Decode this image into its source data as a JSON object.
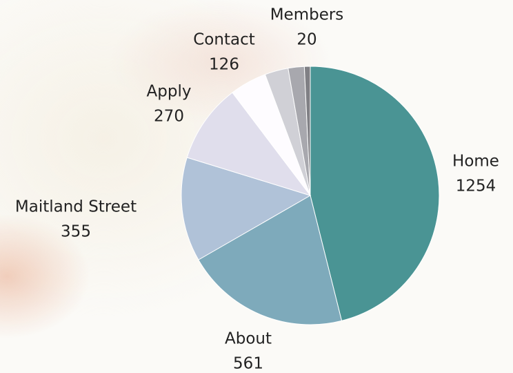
{
  "chart_data": {
    "type": "pie",
    "categories": [
      "Home",
      "About",
      "Maitland Street",
      "Apply",
      "Contact",
      null,
      null,
      "Members"
    ],
    "values": [
      1254,
      561,
      355,
      270,
      126,
      80,
      55,
      20
    ],
    "colors": [
      "#4a9494",
      "#7eaabb",
      "#b0c2d8",
      "#e0deec",
      "#fefcff",
      "#d0d0d6",
      "#a8a8ae",
      "#808085"
    ]
  }
}
